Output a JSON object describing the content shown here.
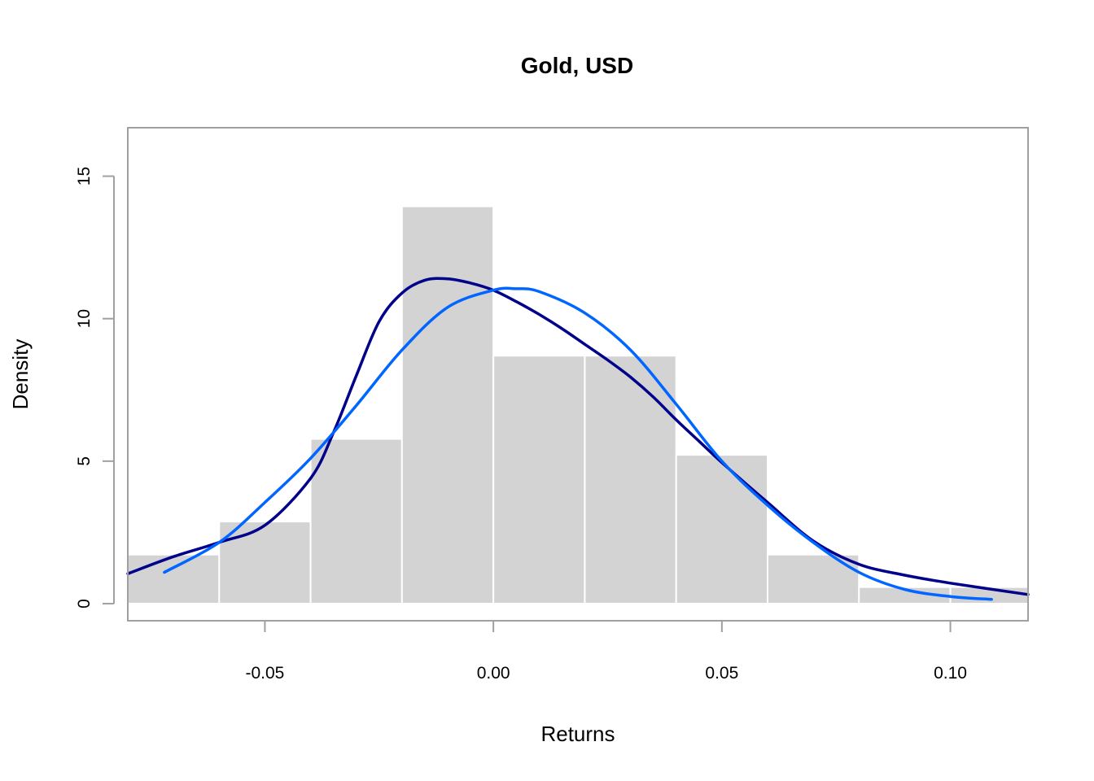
{
  "chart_data": {
    "type": "bar",
    "title": "Gold, USD",
    "xlabel": "Returns",
    "ylabel": "Density",
    "xlim": [
      -0.08,
      0.117
    ],
    "ylim": [
      -0.6,
      16.7
    ],
    "x_ticks": [
      -0.05,
      0.0,
      0.05,
      0.1
    ],
    "x_tick_labels": [
      "-0.05",
      "0.00",
      "0.05",
      "0.10"
    ],
    "y_ticks": [
      0,
      5,
      10,
      15
    ],
    "y_tick_labels": [
      "0",
      "5",
      "10",
      "15"
    ],
    "grid": false,
    "bar_color": "#d3d3d3",
    "histogram": {
      "bins": [
        [
          -0.08,
          -0.06
        ],
        [
          -0.06,
          -0.04
        ],
        [
          -0.04,
          -0.02
        ],
        [
          -0.02,
          0.0
        ],
        [
          0.0,
          0.02
        ],
        [
          0.02,
          0.04
        ],
        [
          0.04,
          0.06
        ],
        [
          0.06,
          0.08
        ],
        [
          0.08,
          0.1
        ],
        [
          0.1,
          0.12
        ]
      ],
      "densities": [
        1.72,
        2.88,
        5.78,
        13.94,
        8.7,
        8.7,
        5.22,
        1.72,
        0.58,
        0.58
      ]
    },
    "series": [
      {
        "color": "#00008b",
        "x": [
          -0.08,
          -0.07,
          -0.06,
          -0.05,
          -0.04,
          -0.035,
          -0.03,
          -0.025,
          -0.02,
          -0.015,
          -0.01,
          -0.005,
          0.0,
          0.005,
          0.01,
          0.015,
          0.02,
          0.025,
          0.03,
          0.035,
          0.04,
          0.045,
          0.05,
          0.06,
          0.07,
          0.08,
          0.09,
          0.1,
          0.117
        ],
        "y": [
          1.05,
          1.65,
          2.15,
          2.75,
          4.4,
          6.0,
          8.0,
          9.9,
          10.9,
          11.35,
          11.4,
          11.25,
          11.0,
          10.6,
          10.15,
          9.65,
          9.1,
          8.55,
          7.95,
          7.25,
          6.45,
          5.7,
          4.95,
          3.55,
          2.2,
          1.38,
          1.0,
          0.72,
          0.32
        ]
      },
      {
        "color": "#0066ff",
        "x": [
          -0.072,
          -0.06,
          -0.05,
          -0.04,
          -0.03,
          -0.02,
          -0.01,
          0.0,
          0.005,
          0.01,
          0.02,
          0.03,
          0.04,
          0.05,
          0.06,
          0.07,
          0.08,
          0.09,
          0.1,
          0.109
        ],
        "y": [
          1.1,
          2.15,
          3.55,
          5.1,
          6.95,
          8.9,
          10.4,
          11.0,
          11.05,
          10.95,
          10.2,
          8.9,
          7.0,
          5.0,
          3.45,
          2.15,
          1.1,
          0.5,
          0.25,
          0.15
        ]
      }
    ]
  }
}
